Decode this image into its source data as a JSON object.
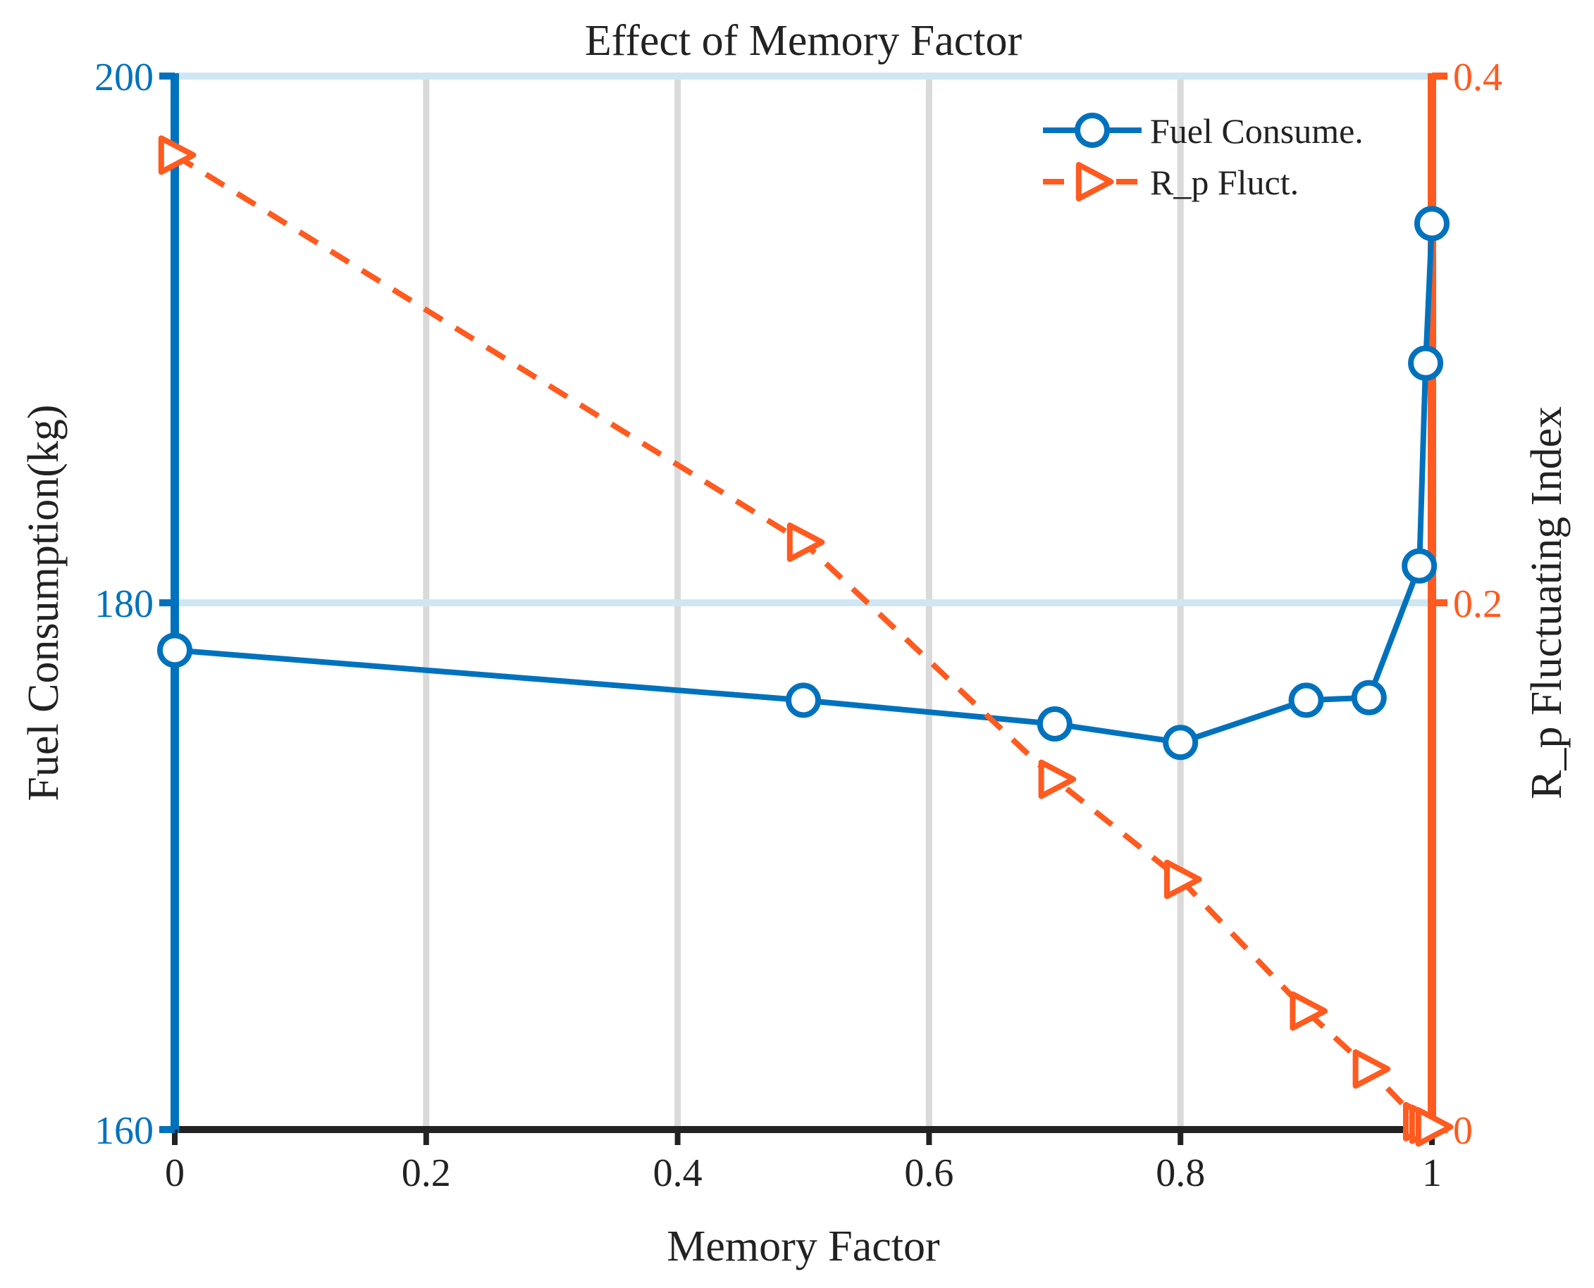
{
  "chart_data": {
    "type": "line",
    "title": "Effect of Memory Factor",
    "xlabel": "Memory Factor",
    "ylabel_left": "Fuel Consumption(kg)",
    "ylabel_right": "R_p Fluctuating Index",
    "xlim": [
      0,
      1
    ],
    "ylim_left": [
      160,
      200
    ],
    "ylim_right": [
      0,
      0.4
    ],
    "x_ticks": [
      0,
      0.2,
      0.4,
      0.6,
      0.8,
      1
    ],
    "x_tick_labels": [
      "0",
      "0.2",
      "0.4",
      "0.6",
      "0.8",
      "1"
    ],
    "y_left_ticks": [
      160,
      180,
      200
    ],
    "y_left_tick_labels": [
      "160",
      "180",
      "200"
    ],
    "y_right_ticks": [
      0,
      0.2,
      0.4
    ],
    "y_right_tick_labels": [
      "0",
      "0.2",
      "0.4"
    ],
    "grid": true,
    "legend_position": "top-right",
    "colors": {
      "left_axis": "#0072BD",
      "right_axis": "#FF5A1F",
      "fuel": "#0072BD",
      "rp": "#FF5A1F",
      "vertical_grid": "#DADADA",
      "horizontal_grid": "#CFE7F4",
      "x_axis": "#222222"
    },
    "series": [
      {
        "name": "Fuel Consume.",
        "axis": "left",
        "marker": "circle",
        "line": "solid",
        "x": [
          0,
          0.5,
          0.7,
          0.8,
          0.9,
          0.95,
          0.99,
          0.995,
          1
        ],
        "y": [
          178.2,
          176.3,
          175.4,
          174.7,
          176.3,
          176.4,
          181.4,
          189.1,
          194.4
        ]
      },
      {
        "name": "R_p Fluct.",
        "axis": "right",
        "marker": "triangle-right",
        "line": "dashed",
        "x": [
          0,
          0.5,
          0.7,
          0.8,
          0.9,
          0.95,
          0.99,
          0.995,
          1
        ],
        "y": [
          0.37,
          0.223,
          0.133,
          0.095,
          0.045,
          0.023,
          0.003,
          0.002,
          0.001
        ]
      }
    ]
  }
}
